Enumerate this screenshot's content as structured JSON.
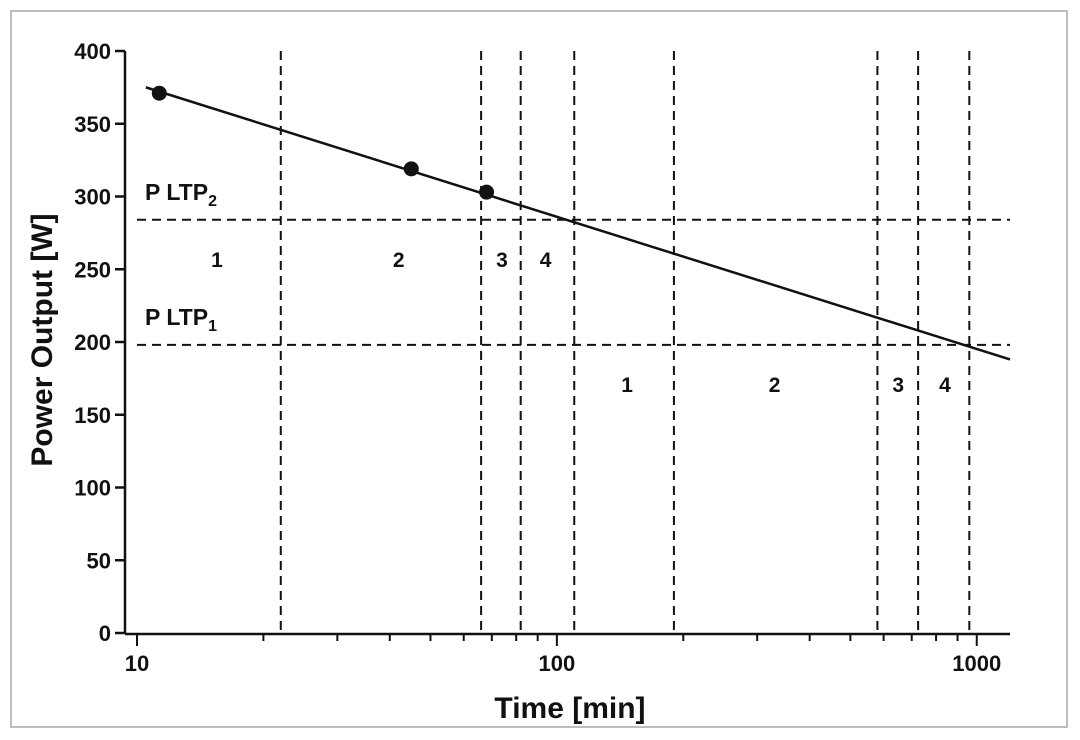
{
  "chart_data": {
    "type": "scatter",
    "title": "",
    "xlabel": "Time [min]",
    "ylabel": "Power Output [W]",
    "x_scale": "log",
    "xlim": [
      10,
      1200
    ],
    "ylim": [
      0,
      400
    ],
    "x_ticks": [
      {
        "value": 10,
        "label": "10"
      },
      {
        "value": 100,
        "label": "100"
      },
      {
        "value": 1000,
        "label": "1000"
      }
    ],
    "y_ticks": [
      {
        "value": 0,
        "label": "0"
      },
      {
        "value": 50,
        "label": "50"
      },
      {
        "value": 100,
        "label": "100"
      },
      {
        "value": 150,
        "label": "150"
      },
      {
        "value": 200,
        "label": "200"
      },
      {
        "value": 250,
        "label": "250"
      },
      {
        "value": 300,
        "label": "300"
      },
      {
        "value": 350,
        "label": "350"
      },
      {
        "value": 400,
        "label": "400"
      }
    ],
    "points": [
      {
        "x": 11.3,
        "y": 371
      },
      {
        "x": 45,
        "y": 319
      },
      {
        "x": 68,
        "y": 303
      }
    ],
    "fit_line": {
      "x": [
        10.5,
        1200
      ],
      "y": [
        375,
        188
      ]
    },
    "thresholds": [
      {
        "name": "P LTP",
        "subscript": "2",
        "y": 284
      },
      {
        "name": "P LTP",
        "subscript": "1",
        "y": 198
      }
    ],
    "vertical_dashed_x": [
      22,
      66,
      82,
      110,
      190,
      580,
      725,
      960
    ],
    "zone_labels": [
      {
        "text": "1",
        "x": 15.5,
        "y": 257
      },
      {
        "text": "2",
        "x": 42,
        "y": 257
      },
      {
        "text": "3",
        "x": 74,
        "y": 257
      },
      {
        "text": "4",
        "x": 94,
        "y": 257
      },
      {
        "text": "1",
        "x": 147,
        "y": 171
      },
      {
        "text": "2",
        "x": 330,
        "y": 171
      },
      {
        "text": "3",
        "x": 650,
        "y": 171
      },
      {
        "text": "4",
        "x": 840,
        "y": 171
      }
    ],
    "grid": false,
    "legend": "none"
  }
}
